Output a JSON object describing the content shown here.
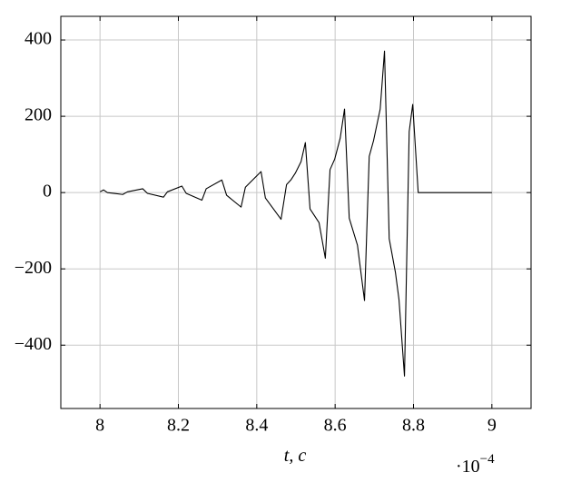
{
  "chart_data": {
    "type": "line",
    "x_label": "t, c",
    "x_scale_base": "·10",
    "x_scale_exponent": "−4",
    "color": "#000000",
    "grid": true,
    "xlim": [
      7.9,
      9.1
    ],
    "ylim": [
      -566,
      462
    ],
    "xticks": [
      8,
      8.2,
      8.4,
      8.6,
      8.8,
      9
    ],
    "yticks": [
      {
        "value": -400,
        "label": "−400"
      },
      {
        "value": -200,
        "label": "−200"
      },
      0,
      200,
      400
    ],
    "x": [
      8.0,
      8.009,
      8.019,
      8.058,
      8.07,
      8.109,
      8.121,
      8.162,
      8.172,
      8.209,
      8.22,
      8.26,
      8.271,
      8.311,
      8.323,
      8.36,
      8.371,
      8.411,
      8.422,
      8.462,
      8.476,
      8.487,
      8.499,
      8.513,
      8.524,
      8.536,
      8.559,
      8.575,
      8.587,
      8.599,
      8.613,
      8.624,
      8.636,
      8.657,
      8.675,
      8.687,
      8.698,
      8.715,
      8.726,
      8.738,
      8.754,
      8.763,
      8.777,
      8.789,
      8.798,
      8.812,
      9.0
    ],
    "values": [
      2,
      7,
      0,
      -5,
      2,
      10,
      -2,
      -12,
      2,
      17,
      -2,
      -20,
      10,
      33,
      -7,
      -38,
      14,
      55,
      -14,
      -70,
      21,
      33,
      52,
      81,
      131,
      -43,
      -79,
      -172,
      60,
      88,
      143,
      219,
      -67,
      -138,
      -283,
      95,
      136,
      219,
      371,
      -121,
      -210,
      -281,
      -481,
      160,
      231,
      0,
      0
    ]
  }
}
